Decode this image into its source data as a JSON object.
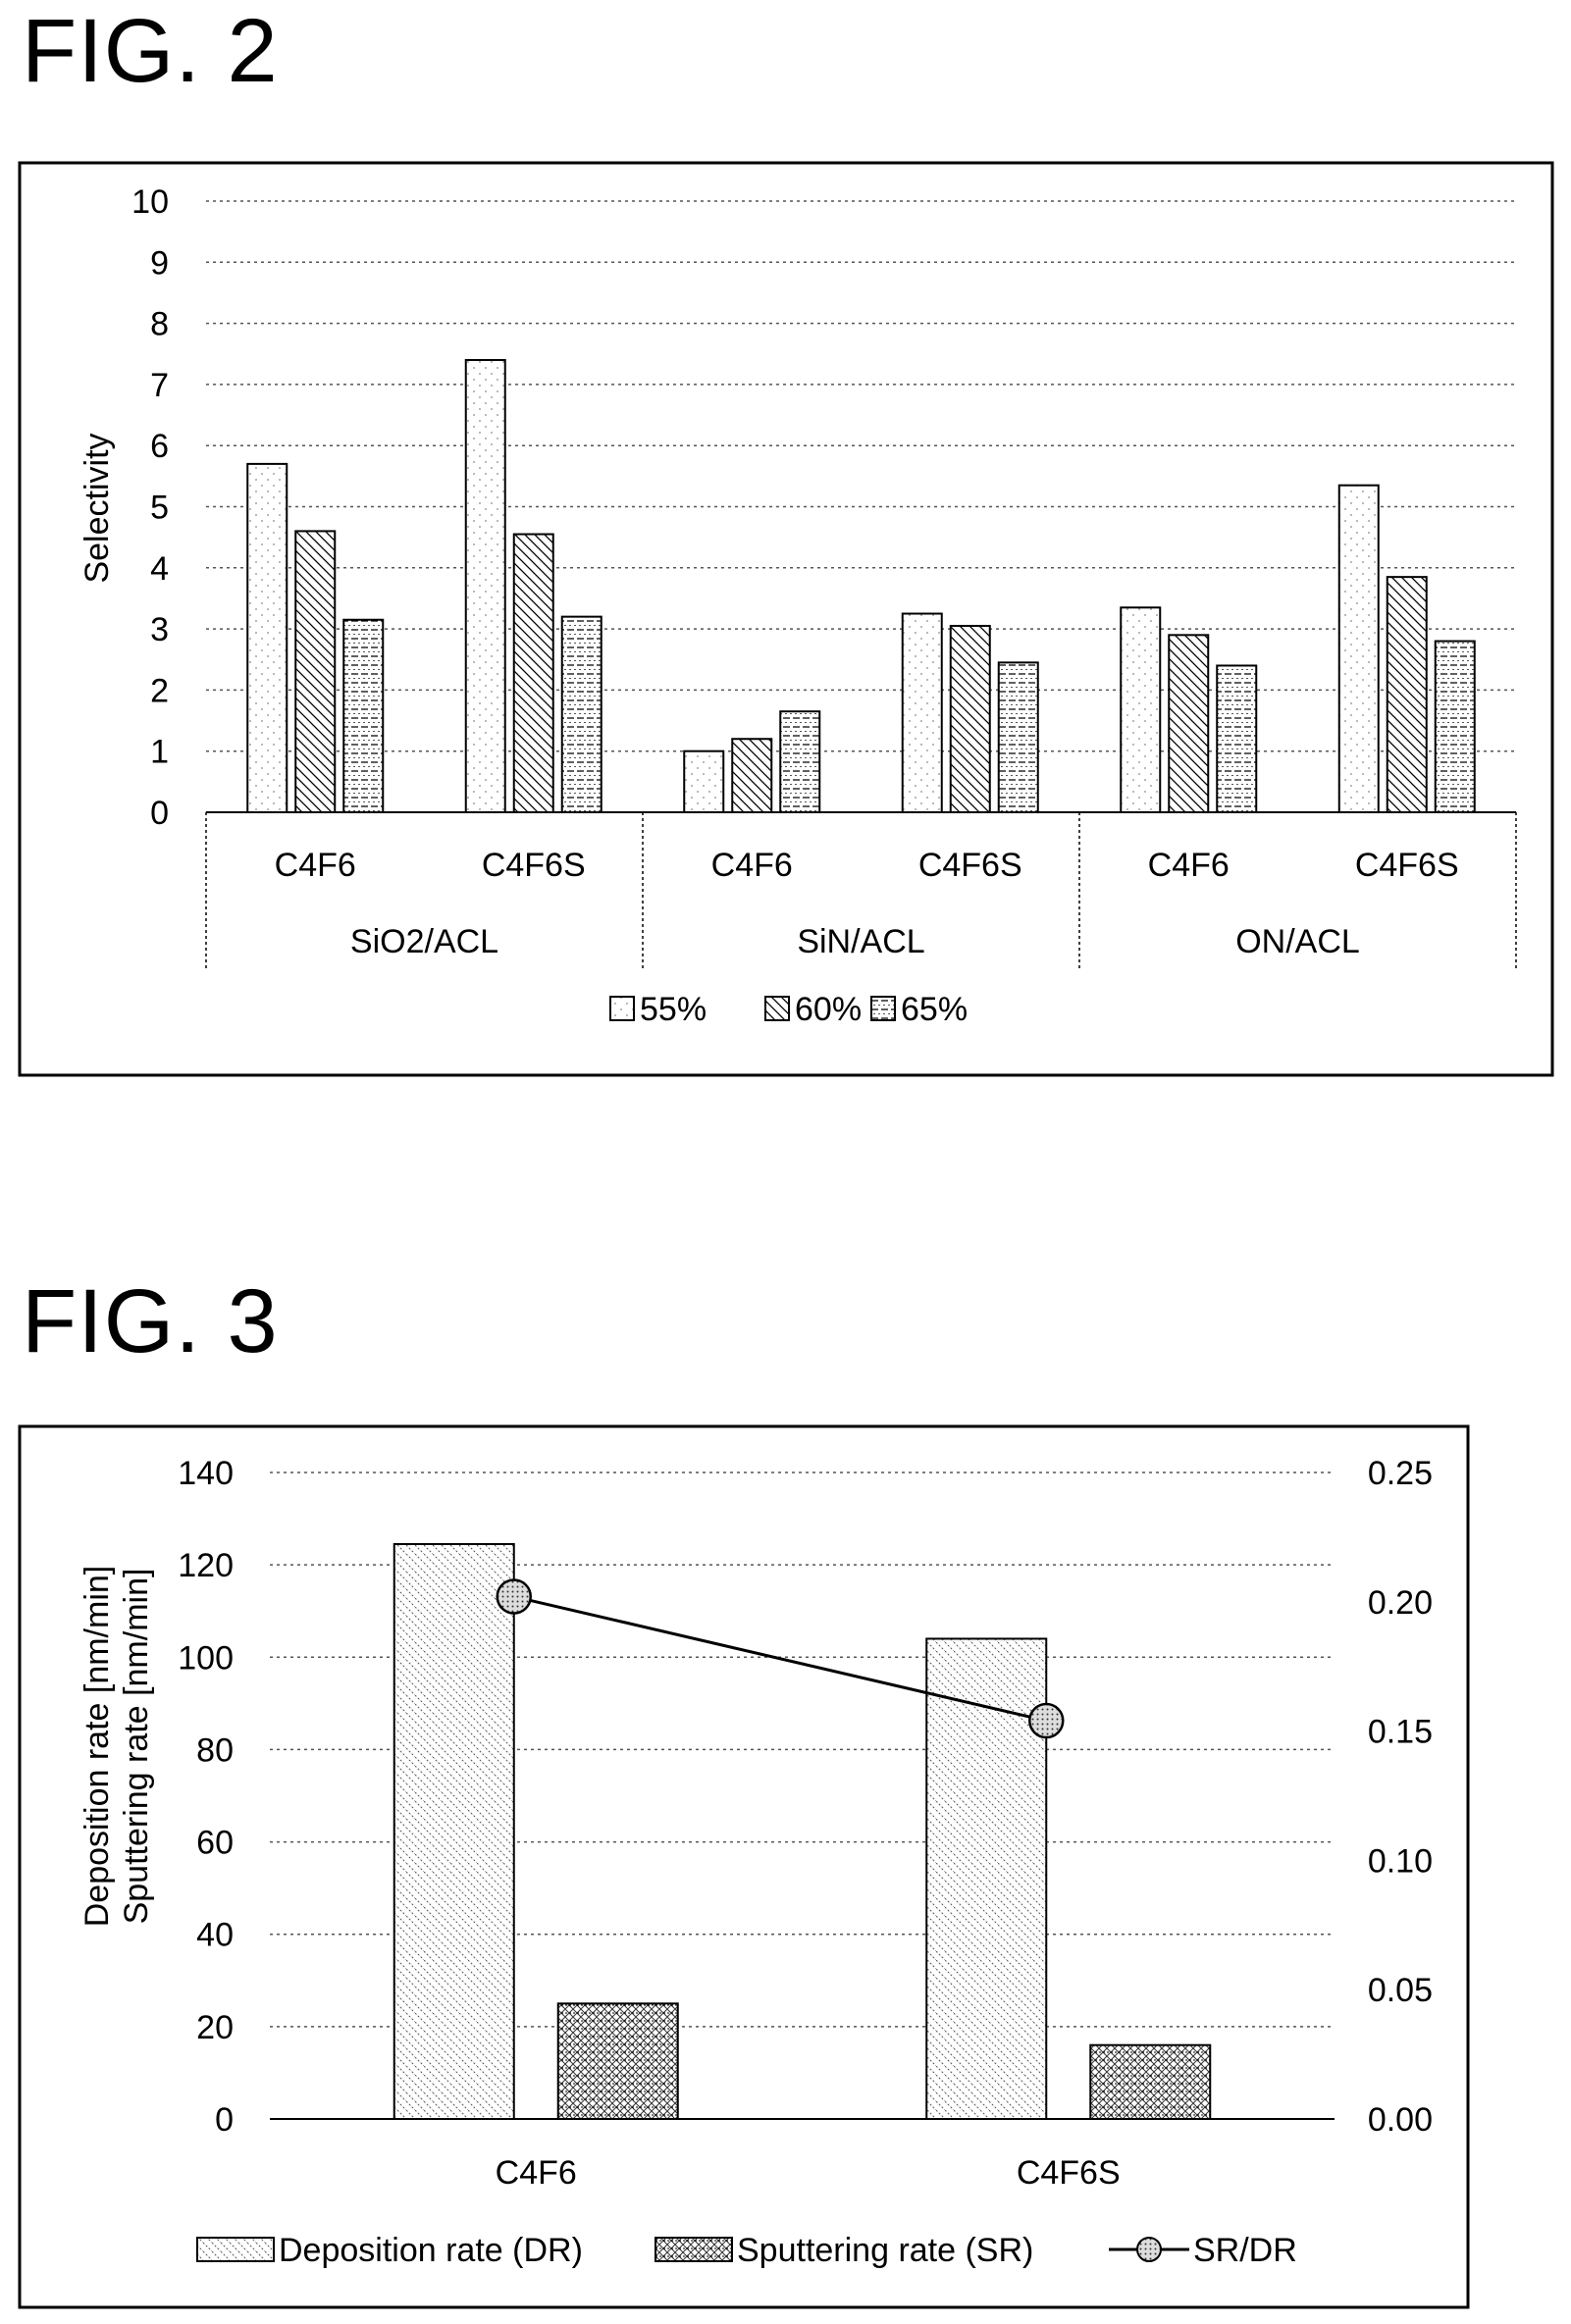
{
  "figures": {
    "fig2": "FIG. 2",
    "fig3": "FIG. 3"
  },
  "chart_data": [
    {
      "type": "bar",
      "ylabel": "Selectivity",
      "ylim": [
        0,
        10
      ],
      "yticks": [
        "0",
        "1",
        "2",
        "3",
        "4",
        "5",
        "6",
        "7",
        "8",
        "9",
        "10"
      ],
      "categories": [
        "C4F6",
        "C4F6S",
        "C4F6",
        "C4F6S",
        "C4F6",
        "C4F6S"
      ],
      "groups": [
        "SiO2/ACL",
        "SiN/ACL",
        "ON/ACL"
      ],
      "series": [
        {
          "name": "55%",
          "values": [
            5.7,
            7.4,
            1.0,
            3.25,
            3.35,
            5.35
          ]
        },
        {
          "name": "60%",
          "values": [
            4.6,
            4.55,
            1.2,
            3.05,
            2.9,
            3.85
          ]
        },
        {
          "name": "65%",
          "values": [
            3.15,
            3.2,
            1.65,
            2.45,
            2.4,
            2.8
          ]
        }
      ],
      "grid": true,
      "legend": "bottom"
    },
    {
      "type": "bar",
      "ylabel": "Deposition rate [nm/min]",
      "ylabel2": "Sputtering rate [nm/min]",
      "ylim": [
        0,
        140
      ],
      "yticks": [
        "0",
        "20",
        "40",
        "60",
        "80",
        "100",
        "120",
        "140"
      ],
      "y2lim": [
        0,
        0.25
      ],
      "y2ticks": [
        "0.00",
        "0.05",
        "0.10",
        "0.15",
        "0.20",
        "0.25"
      ],
      "categories": [
        "C4F6",
        "C4F6S"
      ],
      "series": [
        {
          "name": "Deposition rate (DR)",
          "values": [
            124.5,
            104
          ]
        },
        {
          "name": "Sputtering rate (SR)",
          "values": [
            25,
            16
          ]
        },
        {
          "name": "SR/DR",
          "axis": "right",
          "line": true,
          "values": [
            0.202,
            0.154
          ]
        }
      ],
      "grid": true,
      "legend": "bottom"
    }
  ]
}
